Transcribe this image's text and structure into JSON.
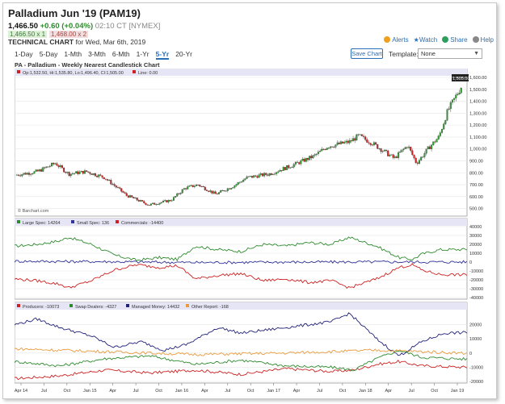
{
  "header": {
    "title": "Palladium Jun '19 (PAM19)",
    "last": "1,466.50",
    "change": "+0.60 (+0.04%)",
    "time": "02:10 CT [NYMEX]",
    "bid": "1,466.50 x 1",
    "ask": "1,468.00 x 2",
    "tech_label": "TECHNICAL CHART",
    "tech_date": "for Wed, Mar 6th, 2019"
  },
  "tools": {
    "alerts": "Alerts",
    "watch": "Watch",
    "share": "Share",
    "help": "Help"
  },
  "tabs": [
    "1-Day",
    "5-Day",
    "1-Mth",
    "3-Mth",
    "6-Mth",
    "1-Yr",
    "5-Yr",
    "20-Yr"
  ],
  "active_tab": "5-Yr",
  "save_chart": "Save Chart",
  "template_label": "Template:",
  "template_value": "None",
  "chart_title": "PA - Palladium - Weekly Nearest Candlestick Chart",
  "watermark": "© Barchart.com",
  "colors": {
    "up": "#2e9e2e",
    "down": "#cc2222",
    "large": "#2e8b2e",
    "small": "#33339a",
    "comm": "#cc2222",
    "producers": "#cc2222",
    "swap": "#2e8b2e",
    "managed": "#22227a",
    "other": "#e89a3c"
  },
  "chart_data": [
    {
      "type": "candlestick",
      "legend": "Op:1,532.50, Hi:1,535.80, Lo:1,496.40, Cl:1,505.00",
      "line_label": "Line: 0.00",
      "last_label": "1,505.00",
      "ylim": [
        450,
        1600
      ],
      "yticks": [
        "500.00",
        "600.00",
        "700.00",
        "800.00",
        "900.00",
        "1,000.00",
        "1,100.00",
        "1,200.00",
        "1,300.00",
        "1,400.00",
        "1,500.00",
        "1,600.00"
      ],
      "ytick_values": [
        500,
        600,
        700,
        800,
        900,
        1000,
        1100,
        1200,
        1300,
        1400,
        1500,
        1600
      ],
      "anchors_x": [
        0,
        0.05,
        0.09,
        0.12,
        0.16,
        0.2,
        0.25,
        0.3,
        0.35,
        0.38,
        0.41,
        0.45,
        0.49,
        0.52,
        0.57,
        0.62,
        0.67,
        0.7,
        0.75,
        0.77,
        0.8,
        0.85,
        0.88,
        0.9,
        0.93,
        0.95,
        0.97,
        1.0
      ],
      "anchors_y": [
        780,
        810,
        880,
        790,
        810,
        760,
        610,
        530,
        570,
        670,
        700,
        620,
        690,
        760,
        790,
        860,
        940,
        1020,
        1060,
        1110,
        1050,
        920,
        1030,
        880,
        1020,
        1100,
        1320,
        1520
      ]
    },
    {
      "type": "line",
      "legend": [
        "Large Spec: 14264",
        "Small Spec: 136",
        "Commercials: -14400"
      ],
      "ylim": [
        -40000,
        40000
      ],
      "yticks": [
        "40000",
        "30000",
        "20000",
        "10000",
        "0",
        "-10000",
        "-20000",
        "-30000",
        "-40000"
      ],
      "ytick_values": [
        40000,
        30000,
        20000,
        10000,
        0,
        -10000,
        -20000,
        -30000,
        -40000
      ],
      "series": [
        {
          "name": "Large Spec",
          "x": [
            0,
            0.05,
            0.1,
            0.12,
            0.17,
            0.22,
            0.27,
            0.32,
            0.36,
            0.4,
            0.45,
            0.5,
            0.55,
            0.6,
            0.65,
            0.7,
            0.74,
            0.8,
            0.85,
            0.88,
            0.9,
            0.94,
            1.0
          ],
          "values": [
            18000,
            20000,
            24000,
            28000,
            20000,
            8000,
            2000,
            5000,
            3000,
            18000,
            14000,
            12000,
            20000,
            18000,
            22000,
            20000,
            28000,
            18000,
            5000,
            3000,
            9000,
            14000,
            14264
          ]
        },
        {
          "name": "Small Spec",
          "x": [
            0,
            0.2,
            0.4,
            0.6,
            0.8,
            1.0
          ],
          "values": [
            1000,
            500,
            -500,
            0,
            200,
            136
          ]
        },
        {
          "name": "Commercials",
          "x": [
            0,
            0.05,
            0.1,
            0.12,
            0.17,
            0.22,
            0.27,
            0.32,
            0.36,
            0.4,
            0.45,
            0.5,
            0.55,
            0.6,
            0.65,
            0.7,
            0.74,
            0.8,
            0.85,
            0.88,
            0.9,
            0.94,
            1.0
          ],
          "values": [
            -19000,
            -21000,
            -25000,
            -29000,
            -21000,
            -9000,
            -3000,
            -6000,
            -4000,
            -19000,
            -15000,
            -13000,
            -21000,
            -19000,
            -23000,
            -21000,
            -29000,
            -19000,
            -6000,
            -3000,
            -9000,
            -14000,
            -14400
          ]
        }
      ]
    },
    {
      "type": "line",
      "legend": [
        "Producers: -10073",
        "Swap Dealers: -4327",
        "Managed Money: 14432",
        "Other Report: -168"
      ],
      "ylim": [
        -20000,
        30000
      ],
      "yticks": [
        "20000",
        "10000",
        "0",
        "-10000",
        "-20000"
      ],
      "ytick_values": [
        20000,
        10000,
        0,
        -10000,
        -20000
      ],
      "xticks": [
        "Apr 14",
        "Jul",
        "Oct",
        "Jan 15",
        "Apr",
        "Jul",
        "Oct",
        "Jan 16",
        "Apr",
        "Jul",
        "Oct",
        "Jan 17",
        "Apr",
        "Jul",
        "Oct",
        "Jan 18",
        "Apr",
        "Jul",
        "Oct",
        "Jan 19"
      ],
      "series": [
        {
          "name": "Producers",
          "x": [
            0,
            0.1,
            0.2,
            0.3,
            0.4,
            0.5,
            0.6,
            0.7,
            0.75,
            0.8,
            0.85,
            0.9,
            1.0
          ],
          "values": [
            -18000,
            -16000,
            -12000,
            -14000,
            -12000,
            -15000,
            -11000,
            -13000,
            -12000,
            -8000,
            -6000,
            -9000,
            -10073
          ]
        },
        {
          "name": "Swap Dealers",
          "x": [
            0,
            0.1,
            0.2,
            0.3,
            0.4,
            0.5,
            0.6,
            0.7,
            0.75,
            0.8,
            0.85,
            0.9,
            1.0
          ],
          "values": [
            -6000,
            -9000,
            -4000,
            -2000,
            -8000,
            -5000,
            -9000,
            -10000,
            -12000,
            -4000,
            2000,
            -3000,
            -4327
          ]
        },
        {
          "name": "Managed Money",
          "x": [
            0,
            0.05,
            0.1,
            0.17,
            0.22,
            0.28,
            0.33,
            0.38,
            0.45,
            0.5,
            0.55,
            0.6,
            0.65,
            0.7,
            0.74,
            0.8,
            0.85,
            0.9,
            0.95,
            1.0
          ],
          "values": [
            20000,
            24000,
            18000,
            12000,
            4000,
            8000,
            2000,
            6000,
            18000,
            14000,
            16000,
            18000,
            20000,
            22000,
            28000,
            10000,
            -2000,
            8000,
            14000,
            14432
          ]
        },
        {
          "name": "Other Report",
          "x": [
            0,
            0.2,
            0.4,
            0.6,
            0.8,
            0.9,
            1.0
          ],
          "values": [
            3000,
            1000,
            -1000,
            0,
            2000,
            1000,
            -168
          ]
        }
      ]
    }
  ]
}
